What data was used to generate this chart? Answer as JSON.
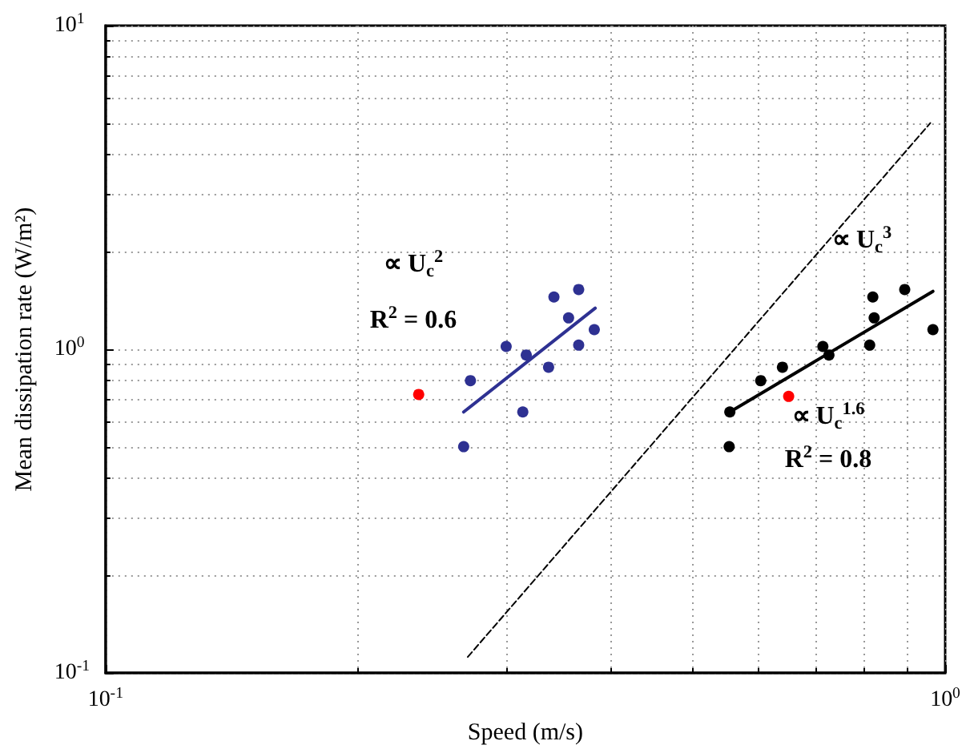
{
  "chart_data": {
    "type": "scatter",
    "xlabel": "Speed (m/s)",
    "ylabel": "Mean dissipation rate (W/m²)",
    "log": "xy",
    "grid": true,
    "marker": "circle",
    "xlim": [
      0.1,
      1
    ],
    "ylim": [
      0.1,
      10
    ],
    "xticks": [
      {
        "value": 0.1,
        "label": "10$^{-1}$"
      },
      {
        "value": 1,
        "label": "10$^{0}$"
      }
    ],
    "yticks": [
      {
        "value": 0.1,
        "label": "10$^{-1}$"
      },
      {
        "value": 1,
        "label": "10$^{0}$"
      },
      {
        "value": 10,
        "label": "10$^{1}$"
      }
    ],
    "series": [
      {
        "color": "#2e3192",
        "x": [
          0.342,
          0.366,
          0.356,
          0.382,
          0.3,
          0.317,
          0.366,
          0.337,
          0.272,
          0.314,
          0.267
        ],
        "values": [
          1.45,
          1.53,
          1.25,
          1.15,
          1.02,
          0.96,
          1.03,
          0.88,
          0.8,
          0.64,
          0.5
        ]
      },
      {
        "color": "#000000",
        "x": [
          0.554,
          0.553,
          0.603,
          0.64,
          0.715,
          0.727,
          0.813,
          0.82,
          0.823,
          0.895,
          0.967
        ],
        "values": [
          0.64,
          0.5,
          0.8,
          0.88,
          1.02,
          0.96,
          1.03,
          1.45,
          1.25,
          1.53,
          1.15
        ]
      },
      {
        "color": "#ff0000",
        "x": [
          0.236,
          0.651
        ],
        "values": [
          0.725,
          0.715
        ]
      },
      {
        "type": "line",
        "color": "#2e3192",
        "x": [
          0.267,
          0.383
        ],
        "values": [
          0.64,
          1.34
        ],
        "line_style": "solid",
        "marker": "none"
      },
      {
        "type": "line",
        "color": "#000000",
        "x": [
          0.554,
          0.967
        ],
        "values": [
          0.64,
          1.51
        ],
        "line_style": "solid",
        "marker": "none"
      },
      {
        "type": "line",
        "color": "#000000",
        "x": [
          0.27,
          0.96
        ],
        "values": [
          0.112,
          5.0
        ],
        "line_style": "dashed",
        "marker": "none"
      }
    ],
    "annotations": [
      "∝ U$_{c}$$^{2}$",
      "R$^{2}$ = 0.6",
      "∝ U$_{c}$$^{1.6}$",
      "R$^{2}$ = 0.8",
      "∝ U$_{c}$$^{3}$"
    ]
  }
}
